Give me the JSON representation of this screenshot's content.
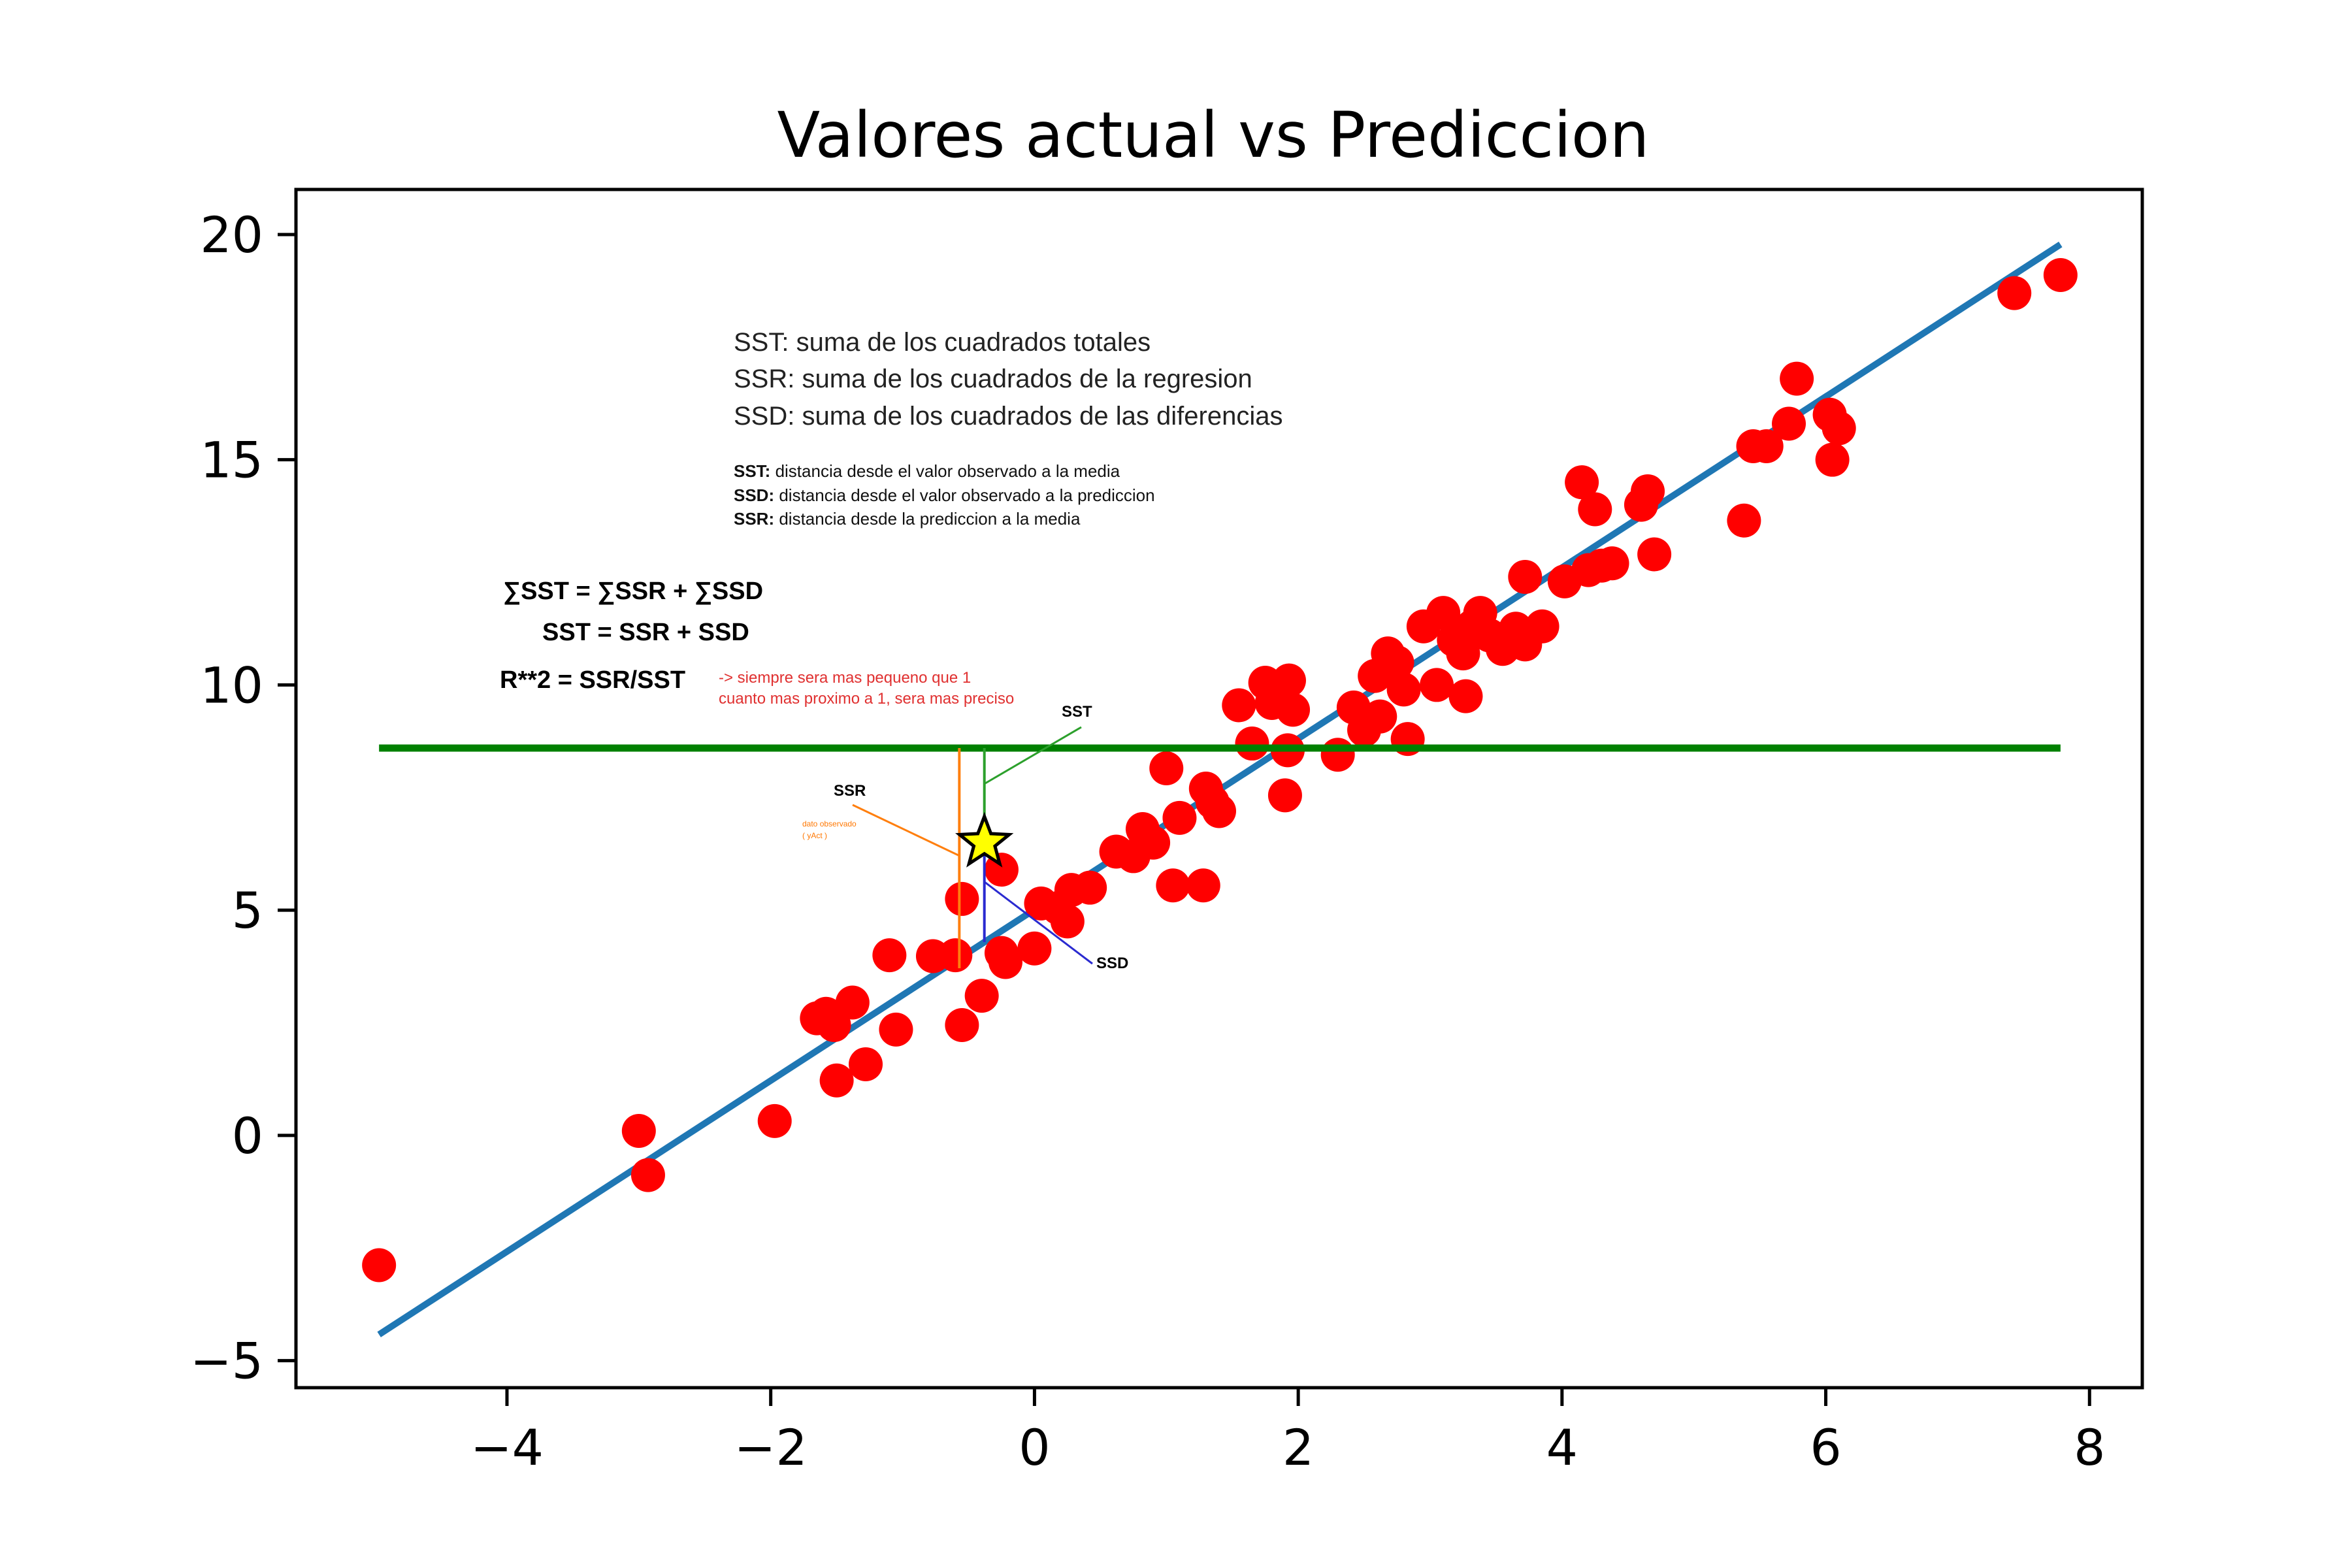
{
  "chart_data": {
    "type": "scatter",
    "title": "Valores actual vs Prediccion",
    "xlabel": "",
    "ylabel": "",
    "xlim": [
      -5.6,
      8.4
    ],
    "ylim": [
      -5.6,
      21.0
    ],
    "xticks": [
      -4,
      -2,
      0,
      2,
      4,
      6,
      8
    ],
    "yticks": [
      -5,
      0,
      5,
      10,
      15,
      20
    ],
    "xtick_labels": [
      "−4",
      "−2",
      "0",
      "2",
      "4",
      "6",
      "8"
    ],
    "ytick_labels": [
      "−5",
      "0",
      "5",
      "10",
      "15",
      "20"
    ],
    "grid": false,
    "colors": {
      "points": "#ff0000",
      "regression": "#1f77b4",
      "mean": "#008000",
      "sst": "#2ca02c",
      "ssr": "#ff7f0e",
      "ssd": "#2a2ad0",
      "star": "#ffff00"
    },
    "points": [
      [
        -4.97,
        -2.88
      ],
      [
        -3.0,
        0.1
      ],
      [
        -2.93,
        -0.88
      ],
      [
        -1.97,
        0.32
      ],
      [
        -1.65,
        2.6
      ],
      [
        -1.58,
        2.7
      ],
      [
        -1.52,
        2.45
      ],
      [
        -1.5,
        1.22
      ],
      [
        -1.38,
        2.95
      ],
      [
        -1.28,
        1.58
      ],
      [
        -1.05,
        2.35
      ],
      [
        -1.1,
        4.0
      ],
      [
        -0.77,
        3.98
      ],
      [
        -0.6,
        4.0
      ],
      [
        -0.55,
        5.25
      ],
      [
        -0.55,
        2.45
      ],
      [
        -0.4,
        3.1
      ],
      [
        -0.25,
        5.9
      ],
      [
        -0.25,
        4.05
      ],
      [
        -0.22,
        3.85
      ],
      [
        0.0,
        4.15
      ],
      [
        0.05,
        5.15
      ],
      [
        0.18,
        5.05
      ],
      [
        0.25,
        4.75
      ],
      [
        0.28,
        5.45
      ],
      [
        0.42,
        5.5
      ],
      [
        0.62,
        6.3
      ],
      [
        0.75,
        6.2
      ],
      [
        0.82,
        6.8
      ],
      [
        0.9,
        6.5
      ],
      [
        1.0,
        8.15
      ],
      [
        1.05,
        5.55
      ],
      [
        1.1,
        7.05
      ],
      [
        1.28,
        5.55
      ],
      [
        1.3,
        7.7
      ],
      [
        1.35,
        7.4
      ],
      [
        1.4,
        7.2
      ],
      [
        1.55,
        9.55
      ],
      [
        1.65,
        8.7
      ],
      [
        1.75,
        10.05
      ],
      [
        1.8,
        9.6
      ],
      [
        1.9,
        7.55
      ],
      [
        1.92,
        8.55
      ],
      [
        1.93,
        10.1
      ],
      [
        1.96,
        9.45
      ],
      [
        2.3,
        8.45
      ],
      [
        2.42,
        9.5
      ],
      [
        2.5,
        9.0
      ],
      [
        2.58,
        10.2
      ],
      [
        2.62,
        9.3
      ],
      [
        2.68,
        10.7
      ],
      [
        2.75,
        10.5
      ],
      [
        2.8,
        9.9
      ],
      [
        2.83,
        8.8
      ],
      [
        2.95,
        11.3
      ],
      [
        3.05,
        10.0
      ],
      [
        3.1,
        11.6
      ],
      [
        3.18,
        11.0
      ],
      [
        3.25,
        10.7
      ],
      [
        3.27,
        9.75
      ],
      [
        3.32,
        11.3
      ],
      [
        3.38,
        11.6
      ],
      [
        3.45,
        11.1
      ],
      [
        3.55,
        10.8
      ],
      [
        3.65,
        11.25
      ],
      [
        3.72,
        10.9
      ],
      [
        3.72,
        12.4
      ],
      [
        3.85,
        11.3
      ],
      [
        4.02,
        12.3
      ],
      [
        4.15,
        14.5
      ],
      [
        4.2,
        12.55
      ],
      [
        4.25,
        13.9
      ],
      [
        4.3,
        12.65
      ],
      [
        4.38,
        12.7
      ],
      [
        4.6,
        14.0
      ],
      [
        4.65,
        14.3
      ],
      [
        4.7,
        12.9
      ],
      [
        5.38,
        13.65
      ],
      [
        5.45,
        15.3
      ],
      [
        5.55,
        15.3
      ],
      [
        5.72,
        15.8
      ],
      [
        5.78,
        16.8
      ],
      [
        6.03,
        16.0
      ],
      [
        6.05,
        15.0
      ],
      [
        6.1,
        15.7
      ],
      [
        7.43,
        18.7
      ],
      [
        7.78,
        19.1
      ]
    ],
    "regression_line": [
      [
        -4.97,
        -4.42
      ],
      [
        7.78,
        19.78
      ]
    ],
    "mean_line": {
      "y": 8.6,
      "x": [
        -4.97,
        7.78
      ]
    },
    "highlight_point": [
      -0.38,
      6.5
    ],
    "annotations": {
      "definitions": [
        "SST: suma de los cuadrados totales",
        "SSR: suma de los cuadrados de la regresion",
        "SSD: suma de los cuadrados de las diferencias"
      ],
      "distances": [
        {
          "term": "SST:",
          "text": " distancia desde el valor observado a la media"
        },
        {
          "term": "SSD:",
          "text": " distancia desde el valor observado a la prediccion"
        },
        {
          "term": "SSR:",
          "text": " distancia desde la prediccion a la media"
        }
      ],
      "formula_sum": "∑SST = ∑SSR + ∑SSD",
      "formula_plain": "SST = SSR + SSD",
      "formula_r2": "R**2 = SSR/SST",
      "r2_note_1": "-> siempre sera mas pequeno que 1",
      "r2_note_2": "cuanto mas proximo a 1, sera mas preciso",
      "sst_label": "SST",
      "ssr_label": "SSR",
      "ssd_label": "SSD",
      "observed_label_1": "dato observado",
      "observed_label_2": "( yAct )"
    }
  }
}
